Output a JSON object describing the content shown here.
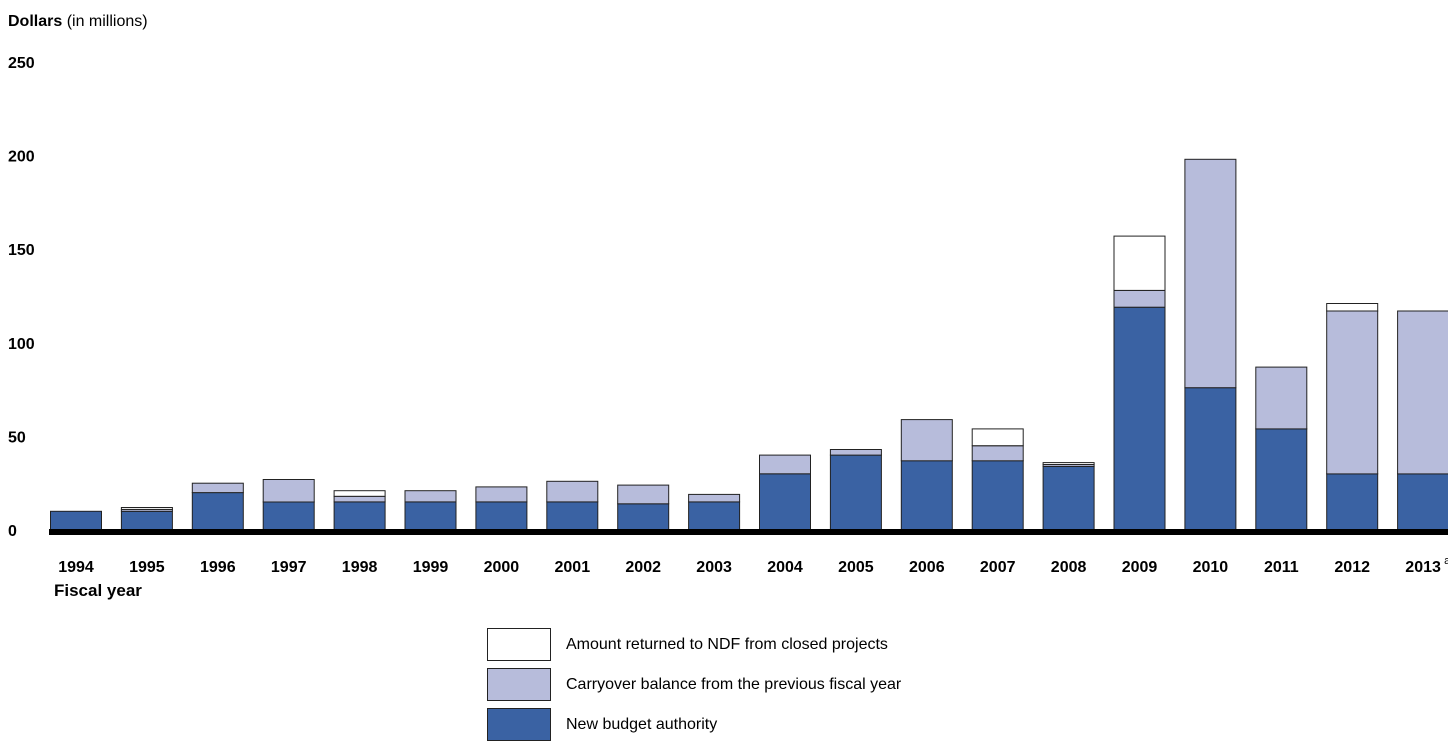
{
  "chart_data": {
    "type": "bar",
    "stacked": true,
    "title": "",
    "ylabel": "Dollars",
    "ylabel_suffix": " (in millions)",
    "xlabel": "Fiscal year",
    "ylim": [
      0,
      250
    ],
    "yticks": [
      "0",
      "50",
      "100",
      "150",
      "200",
      "250"
    ],
    "categories": [
      "1994",
      "1995",
      "1996",
      "1997",
      "1998",
      "1999",
      "2000",
      "2001",
      "2002",
      "2003",
      "2004",
      "2005",
      "2006",
      "2007",
      "2008",
      "2009",
      "2010",
      "2011",
      "2012",
      "2013"
    ],
    "category_footnotes": {
      "2013": "a"
    },
    "grid": false,
    "legend_position": "bottom-center",
    "series": [
      {
        "name": "New budget authority",
        "color": "#3a62a3",
        "values": [
          10,
          10,
          20,
          15,
          15,
          15,
          15,
          15,
          14,
          15,
          30,
          40,
          37,
          37,
          34,
          119,
          76,
          54,
          30,
          30
        ]
      },
      {
        "name": "Carryover balance from the previous fiscal year",
        "color": "#b7bcdb",
        "values": [
          0,
          1,
          5,
          12,
          3,
          6,
          8,
          11,
          10,
          4,
          10,
          3,
          22,
          8,
          1,
          9,
          122,
          33,
          87,
          87
        ]
      },
      {
        "name": "Amount returned to NDF from closed projects",
        "color": "#ffffff",
        "values": [
          0,
          1,
          0,
          0,
          3,
          0,
          0,
          0,
          0,
          0,
          0,
          0,
          0,
          9,
          1,
          29,
          0,
          0,
          4,
          0
        ]
      }
    ]
  }
}
